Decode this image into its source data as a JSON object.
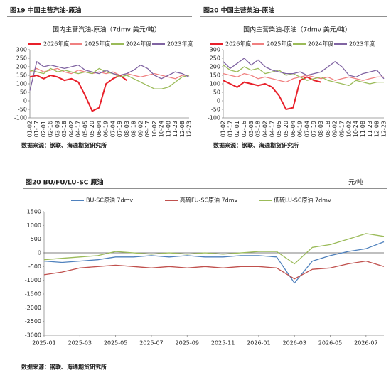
{
  "chart_data": [
    {
      "type": "line",
      "caption": "图19  中国主营汽油-原油",
      "title": "国内主营汽油-原油（7dmv 美元/吨）",
      "source": "数据来源：钢联、海通期货研究所",
      "legend": "top",
      "categories": [
        "01-02",
        "01-17",
        "02-01",
        "02-16",
        "03-03",
        "03-18",
        "04-02",
        "04-17",
        "05-05",
        "05-20",
        "06-04",
        "06-19",
        "07-04",
        "07-19",
        "08-03",
        "08-18",
        "09-02",
        "09-17",
        "10-02",
        "10-24",
        "11-08",
        "11-23",
        "12-08",
        "12-23"
      ],
      "ylim": [
        -100,
        300
      ],
      "yticks": [
        300,
        250,
        200,
        150,
        100,
        50,
        0,
        -50,
        -100
      ],
      "series": [
        {
          "name": "2026年度",
          "color": "#e8202a",
          "width": 2,
          "values": [
            140,
            150,
            130,
            150,
            140,
            120,
            130,
            110,
            30,
            -60,
            -40,
            100,
            130,
            150,
            120,
            null,
            null,
            null,
            null,
            null,
            null,
            null,
            null,
            null
          ]
        },
        {
          "name": "2025年度",
          "color": "#f08080",
          "width": 1.3,
          "values": [
            170,
            190,
            170,
            180,
            190,
            170,
            160,
            180,
            170,
            160,
            170,
            160,
            170,
            150,
            160,
            150,
            140,
            150,
            160,
            150,
            140,
            130,
            150,
            150
          ]
        },
        {
          "name": "2024年度",
          "color": "#9bbb59",
          "width": 1.3,
          "values": [
            180,
            170,
            160,
            190,
            170,
            180,
            170,
            160,
            170,
            160,
            190,
            170,
            160,
            140,
            150,
            130,
            110,
            90,
            70,
            70,
            80,
            110,
            140,
            150
          ]
        },
        {
          "name": "2023年度",
          "color": "#8064a2",
          "width": 1.3,
          "values": [
            60,
            230,
            200,
            210,
            200,
            190,
            200,
            210,
            180,
            170,
            160,
            180,
            160,
            150,
            160,
            180,
            210,
            190,
            150,
            130,
            150,
            170,
            160,
            140
          ]
        }
      ]
    },
    {
      "type": "line",
      "caption": "图20  中国主营柴油-原油",
      "title": "国内主营柴油-原油（7dmv 美元/吨）",
      "source": "数据来源：钢联、海通期货研究所",
      "legend": "top",
      "categories": [
        "01-02",
        "01-17",
        "02-01",
        "02-16",
        "03-03",
        "03-18",
        "04-02",
        "04-17",
        "05-05",
        "05-20",
        "06-04",
        "06-19",
        "07-04",
        "07-19",
        "08-03",
        "08-18",
        "09-02",
        "09-17",
        "10-02",
        "10-24",
        "11-08",
        "11-23",
        "12-08",
        "12-23"
      ],
      "ylim": [
        -100,
        300
      ],
      "yticks": [
        300,
        250,
        200,
        150,
        100,
        50,
        0,
        -50,
        -100
      ],
      "series": [
        {
          "name": "2026年度",
          "color": "#e8202a",
          "width": 2,
          "values": [
            120,
            100,
            80,
            110,
            100,
            90,
            100,
            80,
            30,
            -50,
            -40,
            120,
            140,
            120,
            110,
            null,
            null,
            null,
            null,
            null,
            null,
            null,
            null,
            null
          ]
        },
        {
          "name": "2025年度",
          "color": "#f08080",
          "width": 1.3,
          "values": [
            160,
            150,
            140,
            160,
            150,
            130,
            140,
            130,
            120,
            110,
            130,
            140,
            150,
            140,
            130,
            140,
            120,
            130,
            140,
            130,
            120,
            130,
            140,
            140
          ]
        },
        {
          "name": "2024年度",
          "color": "#9bbb59",
          "width": 1.3,
          "values": [
            210,
            180,
            170,
            200,
            180,
            190,
            160,
            170,
            180,
            150,
            160,
            140,
            120,
            130,
            140,
            120,
            110,
            100,
            90,
            120,
            110,
            100,
            110,
            110
          ]
        },
        {
          "name": "2023年度",
          "color": "#8064a2",
          "width": 1.3,
          "values": [
            230,
            190,
            220,
            250,
            210,
            240,
            200,
            180,
            170,
            160,
            160,
            170,
            150,
            160,
            170,
            200,
            230,
            200,
            150,
            140,
            160,
            170,
            180,
            130
          ]
        }
      ]
    },
    {
      "type": "line",
      "caption": "图20  BU/FU/LU-SC 原油",
      "unit": "元/吨",
      "source": "数据来源：钢联、海通期货研究所",
      "legend": "top",
      "x": [
        "2025-01",
        "2025-02",
        "2025-03",
        "2025-04",
        "2025-05",
        "2025-06",
        "2025-07",
        "2025-08",
        "2025-09",
        "2025-10",
        "2025-11",
        "2025-12",
        "2026-01",
        "2026-02",
        "2026-03",
        "2026-04",
        "2026-05",
        "2026-06",
        "2026-07",
        "2026-08"
      ],
      "xticks": [
        "2025-01",
        "2025-03",
        "2025-05",
        "2025-07",
        "2025-09",
        "2025-11",
        "2026-01",
        "2026-03",
        "2026-05",
        "2026-07"
      ],
      "ylim": [
        -3000,
        1500
      ],
      "yticks": [
        1500,
        1000,
        500,
        0,
        -500,
        -1000,
        -1500,
        -2000,
        -2500,
        -3000
      ],
      "zero_line": true,
      "series": [
        {
          "name": "BU-SC原油 7dmv",
          "color": "#4f81bd",
          "width": 1.3,
          "values": [
            -300,
            -350,
            -300,
            -250,
            -150,
            -150,
            -100,
            -150,
            -100,
            -150,
            -150,
            -100,
            -100,
            -150,
            -1100,
            -300,
            -100,
            50,
            150,
            400
          ]
        },
        {
          "name": "高硫FU-SC原油 7dmv",
          "color": "#c0504d",
          "width": 1.3,
          "values": [
            -800,
            -700,
            -550,
            -500,
            -450,
            -500,
            -550,
            -500,
            -550,
            -500,
            -550,
            -500,
            -500,
            -550,
            -950,
            -600,
            -550,
            -400,
            -300,
            -500
          ]
        },
        {
          "name": "低硫LU-SC原油 7dmv",
          "color": "#9bbb59",
          "width": 1.3,
          "values": [
            -250,
            -200,
            -150,
            -100,
            50,
            0,
            -50,
            0,
            -50,
            0,
            -50,
            0,
            50,
            50,
            -400,
            200,
            300,
            500,
            700,
            600
          ]
        }
      ]
    }
  ]
}
